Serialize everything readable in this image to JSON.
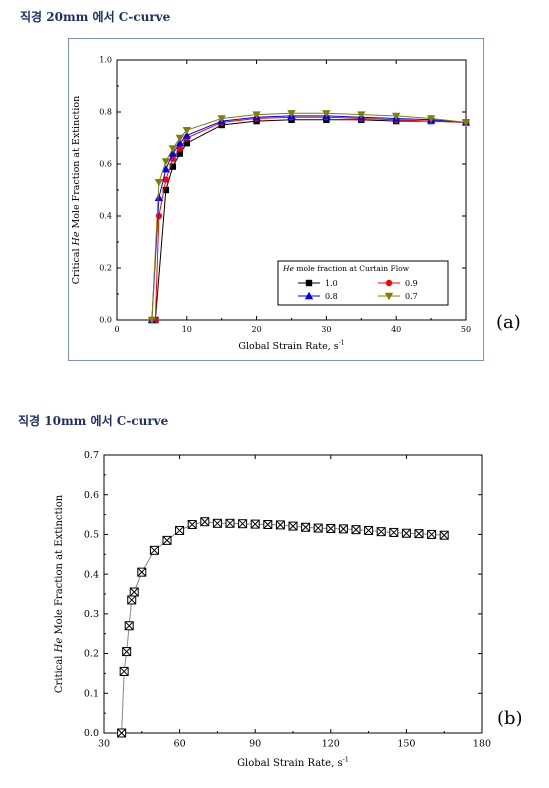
{
  "headings": {
    "a": "직경 20mm 에서 C-curve",
    "b": "직경 10mm 에서 C-curve"
  },
  "panel_labels": {
    "a": "(a)",
    "b": "(b)"
  },
  "chart_data": [
    {
      "type": "line",
      "xlabel": "Global Strain Rate, s-1",
      "ylabel": "Critical He Mole Fraction at Extinction",
      "xlim": [
        0,
        50
      ],
      "ylim": [
        0.0,
        1.0
      ],
      "xticks": [
        0,
        10,
        20,
        30,
        40,
        50
      ],
      "yticks": [
        0.0,
        0.2,
        0.4,
        0.6,
        0.8,
        1.0
      ],
      "xtick_labels": [
        "0",
        "10",
        "20",
        "30",
        "40",
        "50"
      ],
      "ytick_labels": [
        "0.0",
        "0.2",
        "0.4",
        "0.6",
        "0.8",
        "1.0"
      ],
      "legend": {
        "title": "He mole fraction at Curtain Flow",
        "placement": "bottom-right"
      },
      "series": [
        {
          "name": "1.0",
          "color": "#000000",
          "marker": "square",
          "x": [
            5.5,
            7,
            8,
            9,
            10,
            15,
            20,
            25,
            30,
            35,
            40,
            45,
            50
          ],
          "y": [
            0.0,
            0.5,
            0.59,
            0.64,
            0.68,
            0.75,
            0.765,
            0.77,
            0.77,
            0.77,
            0.765,
            0.765,
            0.76
          ]
        },
        {
          "name": "0.9",
          "color": "#ff0000",
          "marker": "circle",
          "x": [
            5.5,
            6,
            7,
            8,
            9,
            10,
            15,
            20,
            25,
            30,
            35,
            40,
            45,
            50
          ],
          "y": [
            0.0,
            0.4,
            0.54,
            0.62,
            0.66,
            0.7,
            0.76,
            0.775,
            0.78,
            0.78,
            0.775,
            0.77,
            0.765,
            0.76
          ]
        },
        {
          "name": "0.8",
          "color": "#0000ff",
          "marker": "triangle-up",
          "x": [
            5,
            6,
            7,
            8,
            9,
            10,
            15,
            20,
            25,
            30,
            35,
            40,
            45,
            50
          ],
          "y": [
            0.0,
            0.47,
            0.58,
            0.64,
            0.68,
            0.71,
            0.765,
            0.78,
            0.785,
            0.785,
            0.78,
            0.775,
            0.77,
            0.76
          ]
        },
        {
          "name": "0.7",
          "color": "#808000",
          "marker": "triangle-down",
          "x": [
            5,
            6,
            7,
            8,
            9,
            10,
            15,
            20,
            25,
            30,
            35,
            40,
            45,
            50
          ],
          "y": [
            0.0,
            0.53,
            0.61,
            0.66,
            0.7,
            0.73,
            0.775,
            0.79,
            0.795,
            0.795,
            0.79,
            0.785,
            0.775,
            0.76
          ]
        }
      ]
    },
    {
      "type": "line",
      "xlabel": "Global Strain Rate, s-1",
      "ylabel": "Critical He Mole Fraction at Extinction",
      "xlim": [
        30,
        180
      ],
      "ylim": [
        0.0,
        0.7
      ],
      "xticks": [
        30,
        60,
        90,
        120,
        150,
        180
      ],
      "yticks": [
        0.0,
        0.1,
        0.2,
        0.3,
        0.4,
        0.5,
        0.6,
        0.7
      ],
      "xtick_labels": [
        "30",
        "60",
        "90",
        "120",
        "150",
        "180"
      ],
      "ytick_labels": [
        "0.0",
        "0.1",
        "0.2",
        "0.3",
        "0.4",
        "0.5",
        "0.6",
        "0.7"
      ],
      "series": [
        {
          "color": "#000000",
          "marker": "boxed-x",
          "x": [
            37,
            38,
            39,
            40,
            41,
            42,
            45,
            50,
            55,
            60,
            65,
            70,
            75,
            80,
            85,
            90,
            95,
            100,
            105,
            110,
            115,
            120,
            125,
            130,
            135,
            140,
            145,
            150,
            155,
            160,
            165
          ],
          "y": [
            0.0,
            0.155,
            0.205,
            0.27,
            0.335,
            0.355,
            0.405,
            0.46,
            0.485,
            0.51,
            0.525,
            0.532,
            0.528,
            0.528,
            0.527,
            0.526,
            0.525,
            0.524,
            0.521,
            0.518,
            0.516,
            0.515,
            0.514,
            0.512,
            0.51,
            0.507,
            0.505,
            0.503,
            0.502,
            0.5,
            0.498
          ]
        }
      ]
    }
  ]
}
